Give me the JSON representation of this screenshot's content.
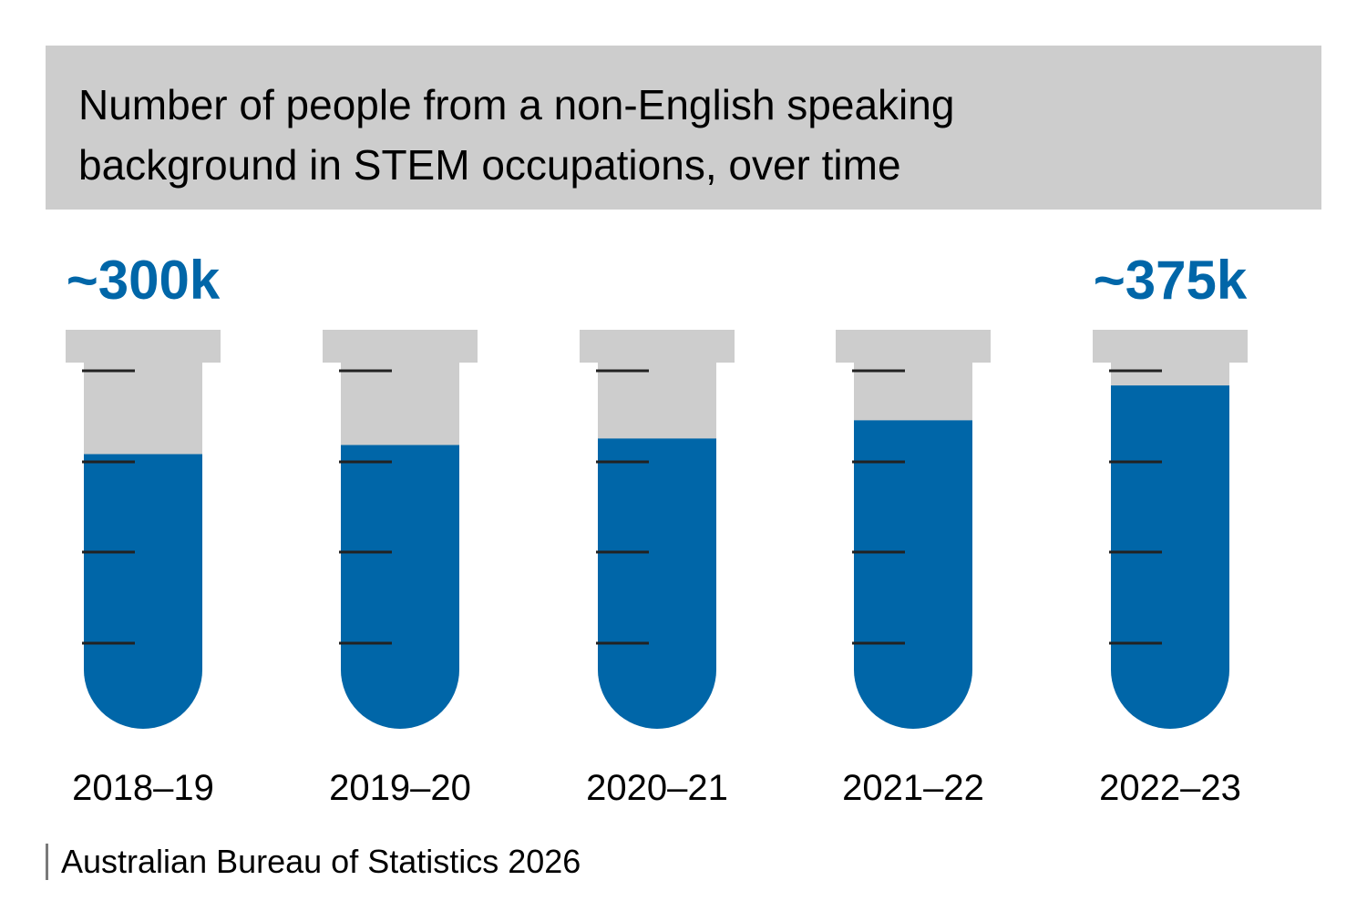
{
  "title": "Number of people from a non-English speaking background in STEM occupations, over time",
  "source": "Australian Bureau of Statistics 2026",
  "colors": {
    "fill": "#0066a8",
    "empty": "#cdcdcd",
    "tick": "#222222",
    "label_accent": "#0066a8"
  },
  "chart_data": {
    "type": "bar",
    "style": "test-tube pictogram",
    "categories": [
      "2018–19",
      "2019–20",
      "2020–21",
      "2021–22",
      "2022–23"
    ],
    "values": [
      300,
      310,
      317,
      337,
      375
    ],
    "unit": "thousand people",
    "ylim": [
      0,
      400
    ],
    "data_labels": [
      "~300k",
      "",
      "",
      "",
      "~375k"
    ],
    "title": "Number of people from a non-English speaking background in STEM occupations, over time",
    "xlabel": "",
    "ylabel": "",
    "grid": false,
    "legend": "none"
  }
}
